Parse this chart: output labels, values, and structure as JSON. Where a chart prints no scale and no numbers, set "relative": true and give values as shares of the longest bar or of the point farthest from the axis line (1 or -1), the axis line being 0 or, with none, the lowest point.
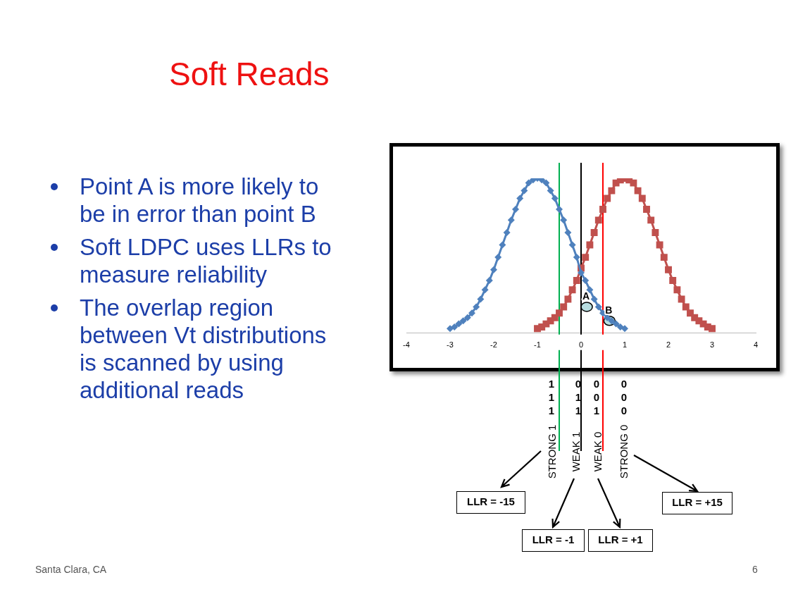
{
  "chart_data": {
    "type": "line",
    "title": "Soft Reads",
    "relative": true,
    "xlim": [
      -4,
      4
    ],
    "xticks": [
      -4,
      -3,
      -2,
      -1,
      0,
      1,
      2,
      3,
      4
    ],
    "grid": false,
    "legend": false,
    "line_style": "solid",
    "series": [
      {
        "color": "#4f81bd",
        "marker": "diamond",
        "x": [
          -3,
          -2.9,
          -2.8,
          -2.7,
          -2.6,
          -2.5,
          -2.4,
          -2.3,
          -2.2,
          -2.1,
          -2,
          -1.9,
          -1.8,
          -1.7,
          -1.6,
          -1.5,
          -1.4,
          -1.3,
          -1.2,
          -1.1,
          -1,
          -0.9,
          -0.8,
          -0.7,
          -0.6,
          -0.5,
          -0.4,
          -0.3,
          -0.2,
          -0.1,
          0,
          0.1,
          0.2,
          0.3,
          0.4,
          0.5,
          0.6,
          0.7,
          0.8,
          0.9,
          1
        ],
        "values": [
          0.03,
          0.04,
          0.06,
          0.08,
          0.1,
          0.13,
          0.17,
          0.22,
          0.28,
          0.34,
          0.41,
          0.49,
          0.57,
          0.65,
          0.73,
          0.8,
          0.87,
          0.92,
          0.97,
          0.99,
          1,
          0.99,
          0.97,
          0.92,
          0.87,
          0.8,
          0.73,
          0.65,
          0.57,
          0.49,
          0.39,
          0.34,
          0.28,
          0.22,
          0.17,
          0.13,
          0.1,
          0.08,
          0.06,
          0.04,
          0.03
        ]
      },
      {
        "color": "#c0504d",
        "marker": "square",
        "x": [
          -1,
          -0.9,
          -0.8,
          -0.7,
          -0.6,
          -0.5,
          -0.4,
          -0.3,
          -0.2,
          -0.1,
          0,
          0.1,
          0.2,
          0.3,
          0.4,
          0.5,
          0.6,
          0.7,
          0.8,
          0.9,
          1,
          1.1,
          1.2,
          1.3,
          1.4,
          1.5,
          1.6,
          1.7,
          1.8,
          1.9,
          2,
          2.1,
          2.2,
          2.3,
          2.4,
          2.5,
          2.6,
          2.7,
          2.8,
          2.9,
          3
        ],
        "values": [
          0.03,
          0.04,
          0.06,
          0.08,
          0.1,
          0.13,
          0.17,
          0.22,
          0.28,
          0.34,
          0.42,
          0.49,
          0.57,
          0.65,
          0.73,
          0.8,
          0.87,
          0.92,
          0.97,
          0.99,
          1,
          0.99,
          0.97,
          0.92,
          0.87,
          0.8,
          0.73,
          0.65,
          0.57,
          0.49,
          0.41,
          0.34,
          0.28,
          0.22,
          0.17,
          0.13,
          0.1,
          0.08,
          0.06,
          0.04,
          0.03
        ]
      }
    ],
    "ref_lines": [
      {
        "axis": "x",
        "value": -0.5,
        "color": "#00b050"
      },
      {
        "axis": "x",
        "value": 0,
        "color": "#000000"
      },
      {
        "axis": "x",
        "value": 0.5,
        "color": "#ff0000"
      }
    ],
    "annotations": [
      "Point A is more likely to be in error than point B",
      "Soft LDPC uses LLRs to measure reliability",
      "The overlap region between Vt distributions is scanned by using additional reads",
      "1 1 1",
      "0 1 1",
      "0 0 1",
      "0 0 0",
      "STRONG 1",
      "WEAK 1",
      "WEAK 0",
      "STRONG 0",
      "LLR = -15",
      "LLR = -1",
      "LLR = +1",
      "LLR = +15",
      {
        "text": "A",
        "x": 0.13,
        "y": 0.17
      },
      {
        "text": "B",
        "x": 0.65,
        "y": 0.08
      },
      "Santa Clara, CA",
      "6"
    ]
  }
}
